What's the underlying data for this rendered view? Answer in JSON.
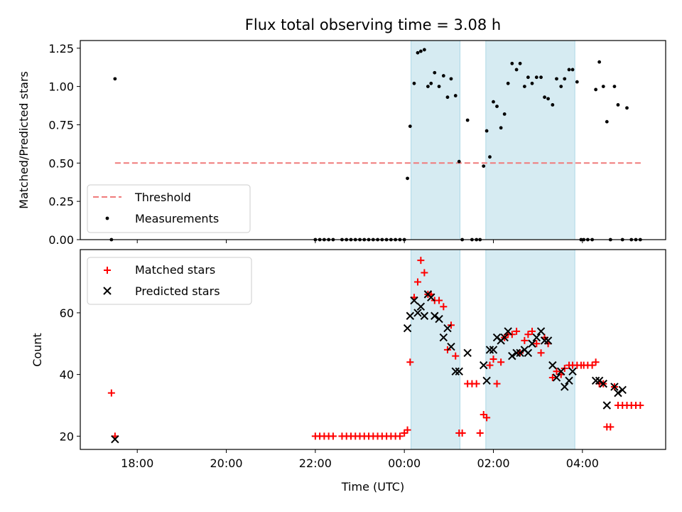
{
  "chart_data": [
    {
      "type": "scatter",
      "title": "Flux total observing time = 3.08 h",
      "xlabel": "",
      "ylabel": "Matched/Predicted stars",
      "xlim_hours": [
        16.72,
        29.87
      ],
      "ylim": [
        0,
        1.3
      ],
      "yticks": [
        0,
        0.25,
        0.5,
        0.75,
        1.0,
        1.25
      ],
      "ytick_labels": [
        "0.00",
        "0.25",
        "0.50",
        "0.75",
        "1.00",
        "1.25"
      ],
      "shaded_intervals_hours": [
        [
          24.15,
          25.25
        ],
        [
          25.83,
          27.83
        ]
      ],
      "threshold": {
        "name": "Threshold",
        "value": 0.5,
        "x_range_hours": [
          17.5,
          29.33
        ],
        "color": "#f07b7b"
      },
      "series": [
        {
          "name": "Measurements",
          "color": "#000000",
          "x_hours": [
            17.42,
            17.5,
            22.0,
            22.1,
            22.2,
            22.3,
            22.4,
            22.6,
            22.7,
            22.8,
            22.9,
            23.0,
            23.1,
            23.2,
            23.3,
            23.4,
            23.5,
            23.6,
            23.7,
            23.8,
            23.9,
            24.0,
            24.07,
            24.13,
            24.22,
            24.3,
            24.37,
            24.45,
            24.53,
            24.6,
            24.68,
            24.78,
            24.88,
            24.97,
            25.05,
            25.15,
            25.23,
            25.3,
            25.42,
            25.52,
            25.62,
            25.7,
            25.78,
            25.85,
            25.92,
            26.0,
            26.08,
            26.17,
            26.25,
            26.33,
            26.42,
            26.52,
            26.6,
            26.7,
            26.78,
            26.87,
            26.97,
            27.07,
            27.15,
            27.23,
            27.33,
            27.42,
            27.52,
            27.6,
            27.7,
            27.78,
            27.88,
            27.97,
            28.03,
            28.12,
            28.22,
            28.3,
            28.38,
            28.47,
            28.55,
            28.63,
            28.72,
            28.8,
            28.9,
            29.0,
            29.1,
            29.2,
            29.3
          ],
          "y": [
            0.0,
            1.05,
            0.0,
            0.0,
            0.0,
            0.0,
            0.0,
            0.0,
            0.0,
            0.0,
            0.0,
            0.0,
            0.0,
            0.0,
            0.0,
            0.0,
            0.0,
            0.0,
            0.0,
            0.0,
            0.0,
            0.0,
            0.4,
            0.74,
            1.02,
            1.22,
            1.23,
            1.24,
            1.0,
            1.02,
            1.09,
            1.0,
            1.07,
            0.93,
            1.05,
            0.94,
            0.51,
            0.0,
            0.78,
            0.0,
            0.0,
            0.0,
            0.48,
            0.71,
            0.54,
            0.9,
            0.87,
            0.73,
            0.82,
            1.02,
            1.15,
            1.11,
            1.15,
            1.0,
            1.06,
            1.02,
            1.06,
            1.06,
            0.93,
            0.92,
            0.88,
            1.05,
            1.0,
            1.05,
            1.11,
            1.11,
            1.03,
            0.0,
            0.0,
            0.0,
            0.0,
            0.98,
            1.16,
            1.0,
            0.77,
            0.0,
            1.0,
            0.88,
            0.0,
            0.86,
            0.0,
            0.0,
            0.0
          ]
        }
      ],
      "legend": [
        "Threshold",
        "Measurements"
      ],
      "legend_position": "lower-left"
    },
    {
      "type": "scatter",
      "title": "",
      "xlabel": "Time (UTC)",
      "ylabel": "Count",
      "xlim_hours": [
        16.72,
        29.87
      ],
      "ylim": [
        15.7,
        80.5
      ],
      "yticks": [
        20,
        40,
        60
      ],
      "ytick_labels": [
        "20",
        "40",
        "60"
      ],
      "xticks_hours": [
        18,
        20,
        22,
        24,
        26,
        28
      ],
      "xtick_labels": [
        "18:00",
        "20:00",
        "22:00",
        "00:00",
        "02:00",
        "04:00"
      ],
      "shaded_intervals_hours": [
        [
          24.15,
          25.25
        ],
        [
          25.83,
          27.83
        ]
      ],
      "series": [
        {
          "name": "Matched stars",
          "marker": "plus",
          "color": "#ff0000",
          "x_hours": [
            17.42,
            17.5,
            22.0,
            22.1,
            22.2,
            22.3,
            22.4,
            22.6,
            22.7,
            22.8,
            22.9,
            23.0,
            23.1,
            23.2,
            23.3,
            23.4,
            23.5,
            23.6,
            23.7,
            23.8,
            23.9,
            24.0,
            24.07,
            24.13,
            24.22,
            24.3,
            24.37,
            24.45,
            24.53,
            24.6,
            24.68,
            24.78,
            24.88,
            24.97,
            25.05,
            25.15,
            25.23,
            25.3,
            25.42,
            25.52,
            25.62,
            25.7,
            25.78,
            25.85,
            25.92,
            26.0,
            26.08,
            26.17,
            26.25,
            26.33,
            26.42,
            26.52,
            26.6,
            26.7,
            26.78,
            26.87,
            26.97,
            27.07,
            27.15,
            27.23,
            27.33,
            27.42,
            27.52,
            27.6,
            27.7,
            27.78,
            27.88,
            27.97,
            28.03,
            28.12,
            28.22,
            28.3,
            28.38,
            28.47,
            28.55,
            28.63,
            28.72,
            28.8,
            28.9,
            29.0,
            29.1,
            29.2,
            29.3
          ],
          "y": [
            34,
            20,
            20,
            20,
            20,
            20,
            20,
            20,
            20,
            20,
            20,
            20,
            20,
            20,
            20,
            20,
            20,
            20,
            20,
            20,
            20,
            21,
            22,
            44,
            65,
            70,
            77,
            73,
            66,
            66,
            64,
            64,
            62,
            48,
            56,
            46,
            21,
            21,
            37,
            37,
            37,
            21,
            27,
            26,
            43,
            45,
            37,
            44,
            52,
            53,
            53,
            54,
            47,
            51,
            53,
            54,
            50,
            47,
            52,
            50,
            39,
            41,
            40,
            42,
            43,
            43,
            43,
            43,
            43,
            43,
            43,
            44,
            37,
            37,
            23,
            23,
            36,
            30,
            30,
            30,
            30,
            30,
            30
          ]
        },
        {
          "name": "Predicted stars",
          "marker": "x",
          "color": "#000000",
          "x_hours": [
            17.5,
            24.07,
            24.13,
            24.22,
            24.3,
            24.37,
            24.45,
            24.53,
            24.6,
            24.68,
            24.78,
            24.88,
            24.97,
            25.05,
            25.15,
            25.23,
            25.42,
            25.78,
            25.85,
            25.92,
            26.0,
            26.08,
            26.17,
            26.25,
            26.33,
            26.42,
            26.52,
            26.6,
            26.7,
            26.78,
            26.87,
            26.97,
            27.07,
            27.15,
            27.23,
            27.33,
            27.42,
            27.52,
            27.6,
            27.7,
            27.78,
            28.3,
            28.38,
            28.47,
            28.55,
            28.72,
            28.8,
            28.9
          ],
          "y": [
            19,
            55,
            59,
            64,
            60,
            62,
            59,
            66,
            65,
            59,
            58,
            52,
            55,
            49,
            41,
            41,
            47,
            43,
            38,
            48,
            48,
            52,
            51,
            52,
            54,
            46,
            47,
            47,
            48,
            47,
            50,
            52,
            54,
            51,
            51,
            43,
            39,
            41,
            36,
            38,
            41,
            38,
            38,
            37,
            30,
            36,
            34,
            35
          ]
        }
      ],
      "legend": [
        "Matched stars",
        "Predicted stars"
      ],
      "legend_position": "top-left"
    }
  ]
}
